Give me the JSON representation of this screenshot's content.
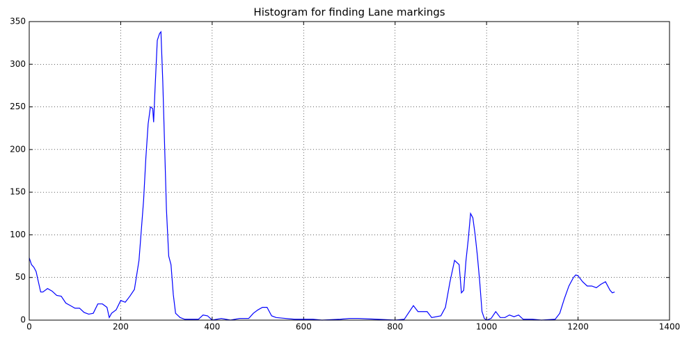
{
  "chart_data": {
    "type": "line",
    "title": "Histogram for finding Lane markings",
    "x": [
      0,
      5,
      10,
      15,
      20,
      25,
      30,
      40,
      50,
      60,
      70,
      80,
      90,
      100,
      110,
      120,
      130,
      140,
      150,
      160,
      170,
      175,
      180,
      190,
      200,
      210,
      220,
      230,
      240,
      250,
      255,
      260,
      265,
      270,
      272,
      275,
      280,
      285,
      288,
      292,
      300,
      305,
      310,
      315,
      320,
      330,
      340,
      350,
      370,
      380,
      390,
      400,
      420,
      440,
      460,
      480,
      490,
      500,
      510,
      520,
      530,
      540,
      560,
      580,
      600,
      620,
      640,
      680,
      700,
      720,
      760,
      800,
      820,
      840,
      850,
      870,
      880,
      900,
      910,
      920,
      930,
      940,
      945,
      950,
      955,
      960,
      965,
      970,
      975,
      980,
      985,
      990,
      995,
      1000,
      1010,
      1020,
      1030,
      1040,
      1050,
      1060,
      1070,
      1080,
      1100,
      1120,
      1150,
      1160,
      1170,
      1180,
      1190,
      1195,
      1200,
      1210,
      1220,
      1230,
      1240,
      1250,
      1260,
      1270,
      1275,
      1280
    ],
    "values": [
      73,
      65,
      62,
      57,
      45,
      33,
      33,
      37,
      34,
      29,
      28,
      20,
      17,
      14,
      14,
      9,
      7,
      8,
      19,
      19,
      15,
      3,
      8,
      12,
      23,
      21,
      28,
      36,
      70,
      140,
      190,
      230,
      250,
      248,
      232,
      270,
      328,
      336,
      338,
      280,
      130,
      75,
      65,
      30,
      8,
      3,
      1,
      1,
      1,
      6,
      5,
      0,
      2,
      0,
      2,
      2,
      8,
      12,
      15,
      15,
      5,
      3,
      2,
      1,
      1,
      1,
      0,
      1,
      2,
      2,
      1,
      0,
      1,
      17,
      10,
      10,
      3,
      5,
      15,
      45,
      70,
      65,
      32,
      35,
      70,
      95,
      125,
      120,
      100,
      75,
      45,
      10,
      2,
      0,
      2,
      10,
      3,
      3,
      6,
      4,
      6,
      1,
      1,
      0,
      1,
      8,
      25,
      40,
      50,
      53,
      52,
      45,
      40,
      40,
      38,
      42,
      45,
      35,
      32,
      33
    ],
    "color": "#0000ff",
    "xlim": [
      0,
      1400
    ],
    "xticks": [
      0,
      200,
      400,
      600,
      800,
      1000,
      1200,
      1400
    ],
    "ylim": [
      0,
      350
    ],
    "yticks": [
      0,
      50,
      100,
      150,
      200,
      250,
      300,
      350
    ],
    "grid": true
  }
}
